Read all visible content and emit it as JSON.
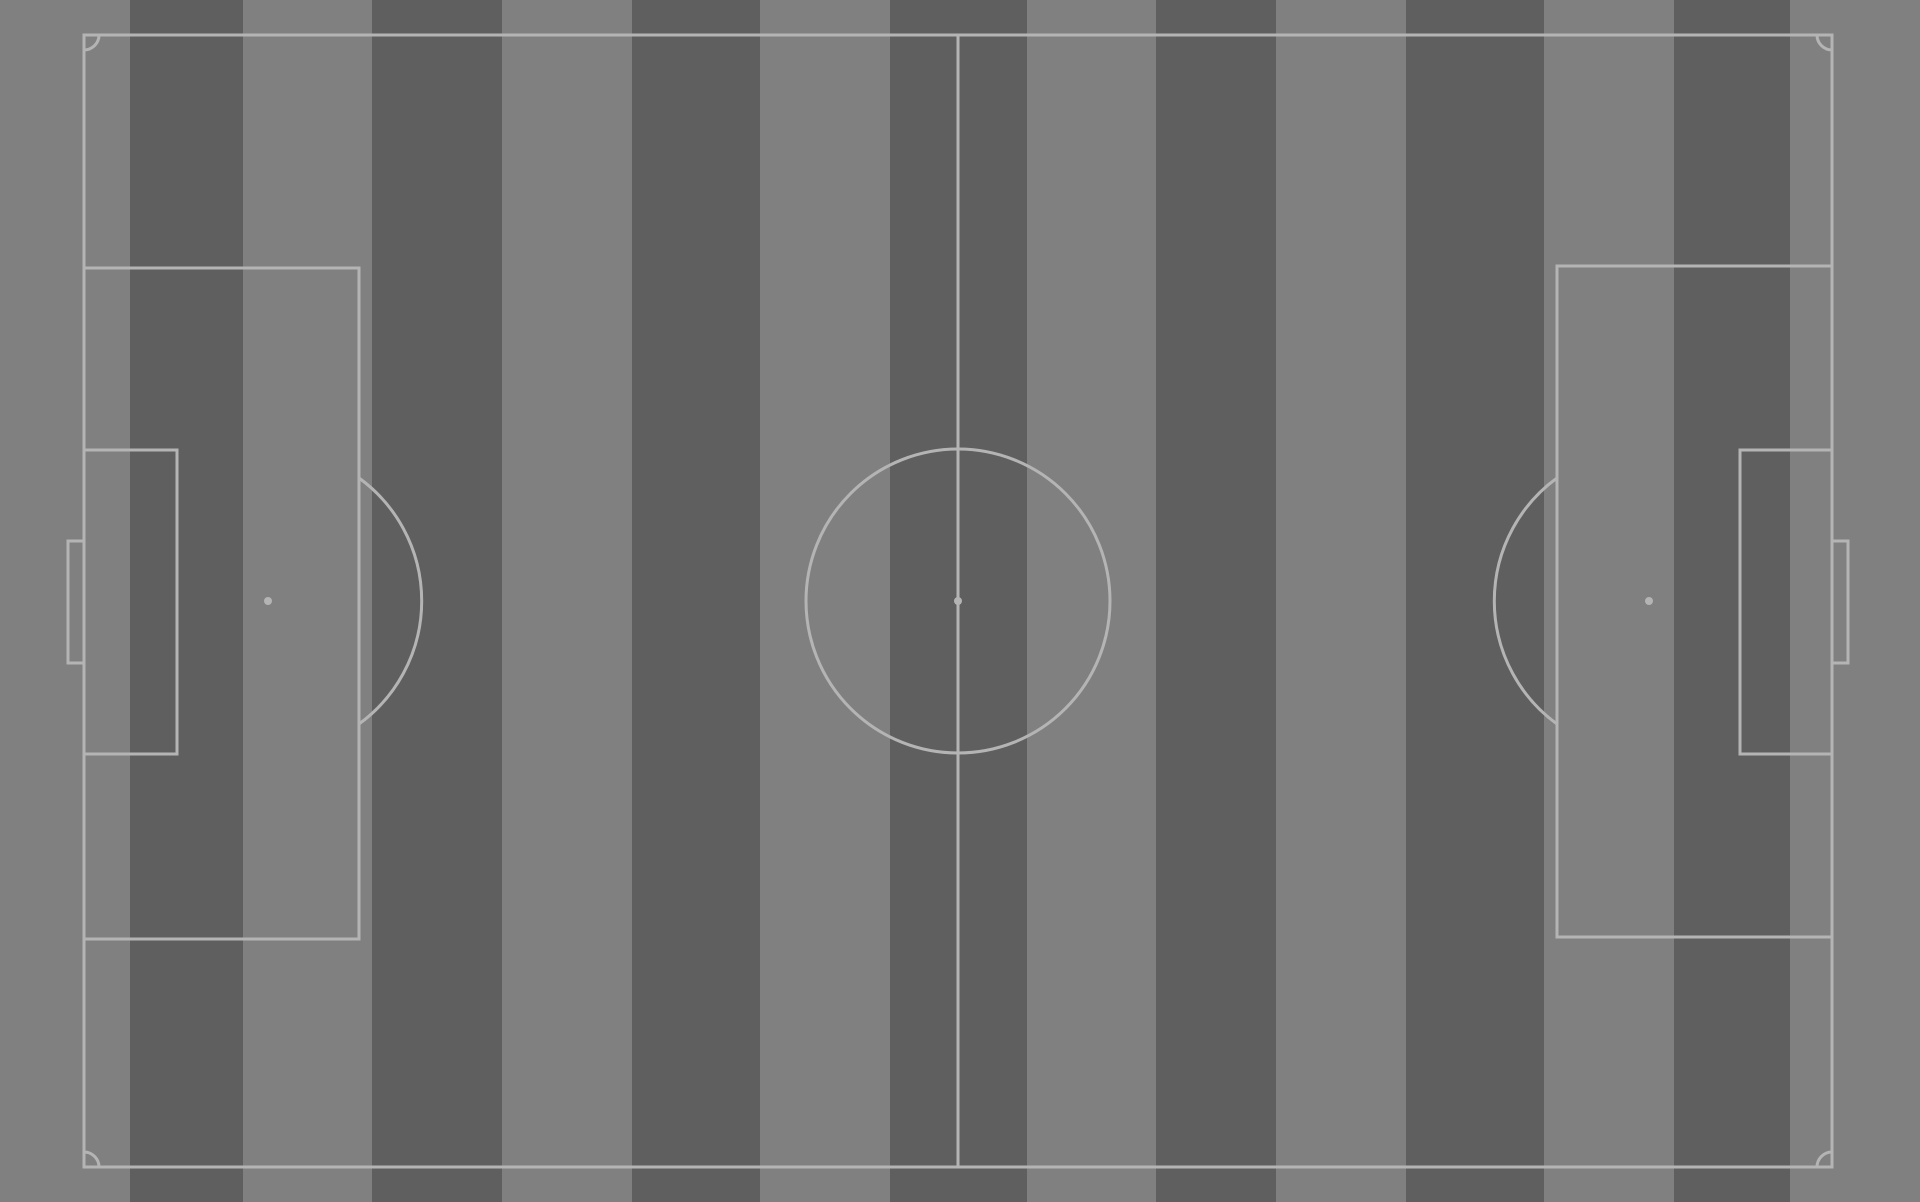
{
  "pitch": {
    "name": "football-pitch",
    "colors": {
      "light_stripe": "#808080",
      "dark_stripe": "#5f5f5f",
      "lines": "#b4b4b4",
      "spots": "#b4b4b4"
    },
    "stripe_pattern": [
      "light",
      "dark",
      "light",
      "dark",
      "light",
      "dark",
      "light",
      "dark",
      "light",
      "dark",
      "light",
      "dark",
      "light",
      "dark",
      "light"
    ],
    "markings": [
      "touchline-boundary",
      "halfway-line",
      "center-circle",
      "center-spot",
      "left-penalty-area",
      "left-goal-area",
      "left-penalty-spot",
      "left-penalty-arc",
      "left-goal",
      "right-penalty-area",
      "right-goal-area",
      "right-penalty-spot",
      "right-penalty-arc",
      "right-goal",
      "corner-arcs"
    ]
  }
}
